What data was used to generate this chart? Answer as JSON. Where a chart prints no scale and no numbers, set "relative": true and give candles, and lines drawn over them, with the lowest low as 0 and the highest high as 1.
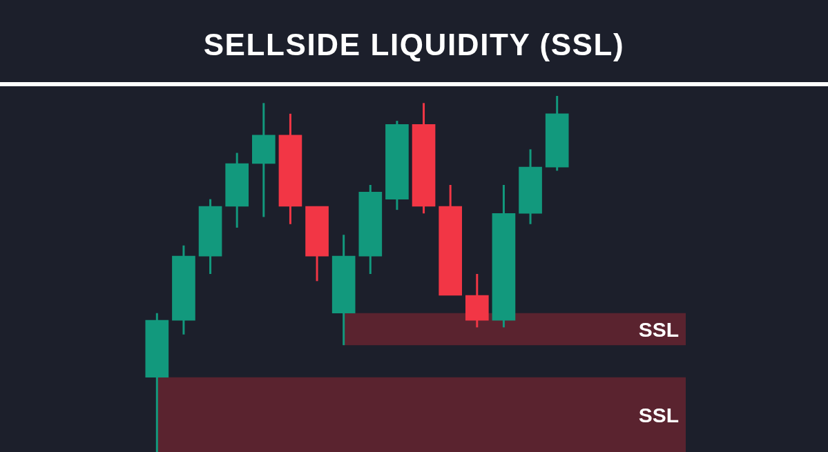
{
  "chart_data": {
    "type": "candlestick",
    "title": "SELLSIDE LIQUIDITY (SSL)",
    "relative": true,
    "categories": [
      null,
      null,
      null,
      null,
      null,
      null,
      null,
      null,
      null,
      null,
      null,
      null,
      null,
      null,
      null,
      null
    ],
    "ohlc": [
      [
        0.21,
        0.39,
        0,
        0.37
      ],
      [
        0.37,
        0.58,
        0.33,
        0.55
      ],
      [
        0.55,
        0.71,
        0.5,
        0.69
      ],
      [
        0.69,
        0.84,
        0.63,
        0.81
      ],
      [
        0.81,
        0.98,
        0.66,
        0.89
      ],
      [
        0.89,
        0.95,
        0.64,
        0.69
      ],
      [
        0.69,
        0.69,
        0.48,
        0.55
      ],
      [
        0.39,
        0.61,
        0.3,
        0.55
      ],
      [
        0.55,
        0.75,
        0.5,
        0.73
      ],
      [
        0.71,
        0.93,
        0.68,
        0.92
      ],
      [
        0.92,
        0.98,
        0.67,
        0.69
      ],
      [
        0.69,
        0.75,
        0.44,
        0.44
      ],
      [
        0.44,
        0.5,
        0.35,
        0.37
      ],
      [
        0.37,
        0.75,
        0.35,
        0.67
      ],
      [
        0.67,
        0.85,
        0.64,
        0.8
      ],
      [
        0.8,
        1,
        0.79,
        0.95
      ]
    ],
    "colors": [
      "#12997d",
      "#12997d",
      "#12997d",
      "#12997d",
      "#12997d",
      "#f23645",
      "#f23645",
      "#12997d",
      "#12997d",
      "#12997d",
      "#f23645",
      "#f23645",
      "#f23645",
      "#12997d",
      "#12997d",
      "#12997d"
    ],
    "bands": [
      {
        "axis": "y",
        "from": 0.3,
        "to": 0.39,
        "label": "SSL",
        "color": "#5a232f"
      },
      {
        "axis": "y",
        "from": 0,
        "to": 0.21,
        "label": "SSL",
        "color": "#5a232f"
      }
    ]
  }
}
